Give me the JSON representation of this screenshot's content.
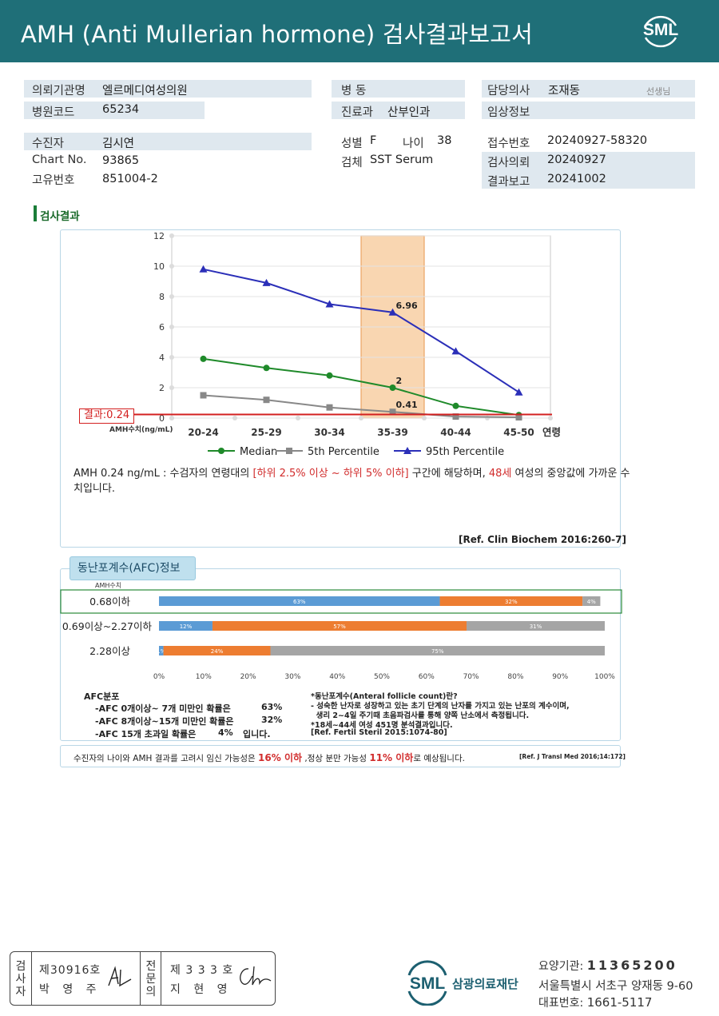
{
  "header": {
    "title": "AMH (Anti Mullerian hormone) 검사결과보고서",
    "logo": "SML"
  },
  "info": {
    "institution_label": "의뢰기관명",
    "institution": "엘르메디여성의원",
    "hospcode_label": "병원코드",
    "hospcode": "65234",
    "ward_label": "병  동",
    "dept_label": "진료과",
    "dept": "산부인과",
    "doctor_label": "담당의사",
    "doctor": "조재동",
    "doctor_suffix": "선생님",
    "clinical_label": "임상정보",
    "patient_label": "수진자",
    "patient": "김시연",
    "chart_label": "Chart No.",
    "chart": "93865",
    "uid_label": "고유번호",
    "uid": "851004-2",
    "sex_label": "성별",
    "sex": "F",
    "age_label": "나이",
    "age": "38",
    "specimen_label": "검체",
    "specimen": "SST Serum",
    "receipt_label": "접수번호",
    "receipt": "20240927-58320",
    "requested_label": "검사의뢰",
    "requested": "20240927",
    "reported_label": "결과보고",
    "reported": "20241002"
  },
  "section_title": "검사결과",
  "chart_data": {
    "type": "line",
    "categories": [
      "20-24",
      "25-29",
      "30-34",
      "35-39",
      "40-44",
      "45-50"
    ],
    "xlabel": "연령",
    "ylabel": "AMH수치(ng/mL)",
    "ylim": [
      0,
      12
    ],
    "yticks": [
      0,
      2,
      4,
      6,
      8,
      10,
      12
    ],
    "grid": true,
    "legend": "bottom",
    "highlight_category": "35-39",
    "series": [
      {
        "name": "Median",
        "color": "#1f8a2a",
        "marker": "circle",
        "values": [
          3.9,
          3.3,
          2.8,
          2.0,
          0.8,
          0.2
        ]
      },
      {
        "name": "5th Percentile",
        "color": "#888888",
        "marker": "square",
        "values": [
          1.5,
          1.2,
          0.7,
          0.41,
          0.1,
          0.05
        ]
      },
      {
        "name": "95th Percentile",
        "color": "#2b2fb8",
        "marker": "triangle",
        "values": [
          9.8,
          8.9,
          7.5,
          6.96,
          4.4,
          1.7
        ]
      }
    ],
    "annotations": [
      {
        "category": "35-39",
        "series": "95th Percentile",
        "text": "6.96"
      },
      {
        "category": "35-39",
        "series": "Median",
        "text": "2"
      },
      {
        "category": "35-39",
        "series": "5th Percentile",
        "text": "0.41"
      }
    ],
    "result_line": {
      "value": 0.24,
      "label": "결과:0.24",
      "color": "#d32020"
    }
  },
  "amh_note": {
    "p1": "AMH  0.24 ng/mL : 수검자의 연령대의 ",
    "r1": "[하위 2.5% 이상 ~ 하위 5% 이하]",
    "p2": " 구간에 해당하며, ",
    "r2": "48세",
    "p3": " 여성의 중앙값에 가까운 수치입니다."
  },
  "ref1": "[Ref. Clin Biochem 2016:260-7]",
  "afc": {
    "tab": "동난포계수(AFC)정보",
    "amh_label": "AMH수치",
    "rows": [
      {
        "label": "0.68이하",
        "segments": [
          63,
          32,
          4
        ]
      },
      {
        "label": "0.69이상~2.27이하",
        "segments": [
          12,
          57,
          31
        ]
      },
      {
        "label": "2.28이상",
        "segments": [
          1,
          24,
          75
        ]
      }
    ],
    "segment_colors": [
      "#5b9bd5",
      "#ed7d31",
      "#a5a5a5"
    ],
    "axis": [
      "0%",
      "10%",
      "20%",
      "30%",
      "40%",
      "50%",
      "60%",
      "70%",
      "80%",
      "90%",
      "100%"
    ],
    "dist_title": "AFC분포",
    "dist": [
      {
        "text": "-AFC 0개이상~ 7개 미만인 확률은",
        "pct": "63%"
      },
      {
        "text": "-AFC 8개이상~15개 미만인 확률은",
        "pct": "32%"
      },
      {
        "text": "-AFC 15개 초과일 확률은",
        "pct": "4%",
        "tail": "입니다."
      }
    ],
    "notes": [
      "*동난포계수(Anteral follicle count)란?",
      "- 성숙한 난자로 성장하고 있는 초기 단계의 난자를 가지고 있는 난포의 계수이며,",
      "  생리 2~4일 주기때 초음파검사를 통해 양쪽 난소에서 측정됩니다.",
      "*18세~44세 여성 451명 분석결과입니다.",
      "[Ref. Fertil Steril 2015:1074-80]"
    ]
  },
  "footnote": {
    "p1": "수진자의  나이와 AMH 결과를 고려시 임신 가능성은  ",
    "r1": "16% 이하",
    "p2": " ,정상 분만 가능성  ",
    "r2": "11% 이하",
    "p3": "로 예상됩니다.",
    "ref": "[Ref. J Transl Med 2016;14:172]"
  },
  "signature": {
    "col1": "검사자",
    "no1": "제30916호",
    "name1": "박 영 주",
    "col2": "전문의",
    "no2": "제 3 3 3 호",
    "name2": "지 현 영"
  },
  "institution": {
    "logo": "SML",
    "name": "삼광의료재단",
    "code_label": "요양기관:",
    "code": "11365200",
    "address": "서울특별시 서초구 양재동 9-60",
    "phone_label": "대표번호:",
    "phone": "1661-5117"
  }
}
